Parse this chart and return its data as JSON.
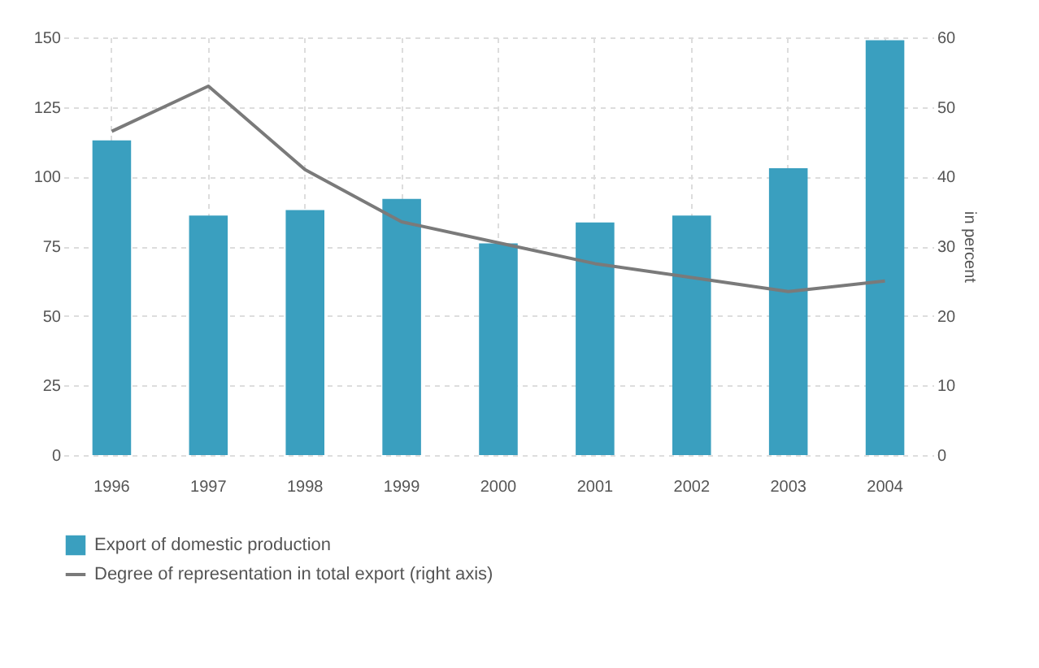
{
  "chart_data": {
    "type": "bar",
    "y2label": "in percent",
    "categories": [
      "1996",
      "1997",
      "1998",
      "1999",
      "2000",
      "2001",
      "2002",
      "2003",
      "2004"
    ],
    "series": [
      {
        "name": "Export of domestic production",
        "color": "#3a9fbf",
        "values": [
          113,
          86,
          88,
          92,
          76,
          83.5,
          86,
          103,
          149
        ]
      },
      {
        "name": "Degree of representation in total export (right axis)",
        "type": "line",
        "axis": "y2",
        "color": "#7a7a7a",
        "values": [
          46.5,
          53,
          41,
          33.5,
          30.5,
          27.5,
          25.5,
          23.5,
          25
        ]
      }
    ],
    "ylim": [
      0,
      150
    ],
    "yticks": [
      0,
      25,
      50,
      75,
      100,
      125,
      150
    ],
    "y2lim": [
      0,
      60
    ],
    "y2ticks": [
      0,
      10,
      20,
      30,
      40,
      50,
      60
    ],
    "grid": true,
    "legend": "bottom"
  }
}
